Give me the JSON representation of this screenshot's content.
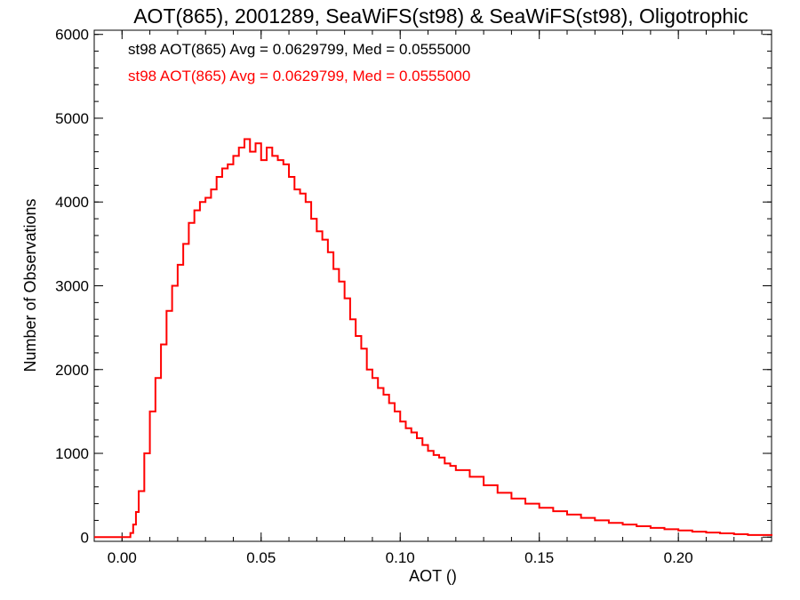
{
  "chart_data": {
    "type": "line",
    "title": "AOT(865), 2001289, SeaWiFS(st98) & SeaWiFS(st98), Oligotrophic",
    "xlabel": "AOT ()",
    "ylabel": "Number of Observations",
    "xlim": [
      -0.01,
      0.2335
    ],
    "ylim": [
      -50,
      6050
    ],
    "xticks": [
      0.0,
      0.05,
      0.1,
      0.15,
      0.2
    ],
    "xtick_labels": [
      "0.00",
      "0.05",
      "0.10",
      "0.15",
      "0.20"
    ],
    "yticks": [
      0,
      1000,
      2000,
      3000,
      4000,
      5000,
      6000
    ],
    "ytick_labels": [
      "0",
      "1000",
      "2000",
      "3000",
      "4000",
      "5000",
      "6000"
    ],
    "annotations": [
      {
        "text": "st98 AOT(865) Avg = 0.0629799, Med = 0.0555000",
        "color": "#000000"
      },
      {
        "text": "st98 AOT(865) Avg = 0.0629799, Med = 0.0555000",
        "color": "#ff0000"
      }
    ],
    "series": [
      {
        "color": "#ff0000",
        "x": [
          -0.01,
          0.0,
          0.003,
          0.004,
          0.005,
          0.006,
          0.008,
          0.01,
          0.012,
          0.014,
          0.016,
          0.018,
          0.02,
          0.022,
          0.024,
          0.026,
          0.028,
          0.03,
          0.032,
          0.034,
          0.036,
          0.038,
          0.04,
          0.042,
          0.044,
          0.046,
          0.048,
          0.05,
          0.052,
          0.054,
          0.056,
          0.058,
          0.06,
          0.062,
          0.064,
          0.066,
          0.068,
          0.07,
          0.072,
          0.074,
          0.076,
          0.078,
          0.08,
          0.082,
          0.084,
          0.086,
          0.088,
          0.09,
          0.092,
          0.094,
          0.096,
          0.098,
          0.1,
          0.102,
          0.104,
          0.106,
          0.108,
          0.11,
          0.112,
          0.114,
          0.116,
          0.118,
          0.12,
          0.125,
          0.13,
          0.135,
          0.14,
          0.145,
          0.15,
          0.155,
          0.16,
          0.165,
          0.17,
          0.175,
          0.18,
          0.185,
          0.19,
          0.195,
          0.2,
          0.205,
          0.21,
          0.215,
          0.22,
          0.225,
          0.2335
        ],
        "y": [
          0,
          0,
          50,
          150,
          300,
          550,
          1000,
          1500,
          1900,
          2300,
          2700,
          3000,
          3250,
          3500,
          3750,
          3900,
          4000,
          4050,
          4150,
          4300,
          4400,
          4450,
          4550,
          4650,
          4750,
          4600,
          4700,
          4500,
          4650,
          4550,
          4500,
          4450,
          4300,
          4150,
          4100,
          4000,
          3800,
          3650,
          3550,
          3400,
          3200,
          3050,
          2850,
          2600,
          2400,
          2250,
          2000,
          1900,
          1780,
          1700,
          1600,
          1500,
          1380,
          1300,
          1250,
          1180,
          1100,
          1030,
          980,
          950,
          880,
          850,
          800,
          720,
          620,
          530,
          460,
          400,
          350,
          310,
          270,
          230,
          200,
          170,
          150,
          130,
          110,
          95,
          80,
          65,
          55,
          45,
          35,
          25,
          15
        ]
      }
    ]
  }
}
